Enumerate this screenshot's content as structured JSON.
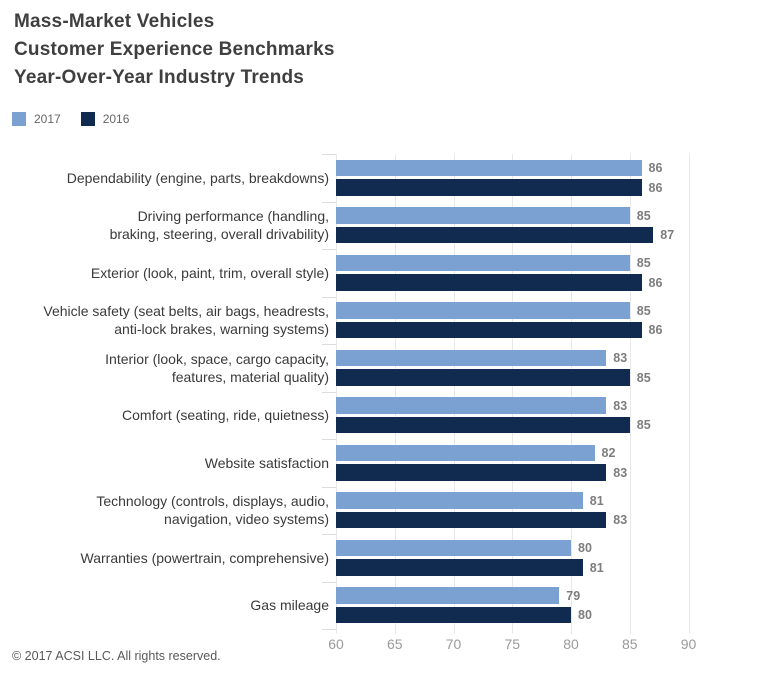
{
  "title": {
    "line1": "Mass-Market Vehicles",
    "line2": "Customer Experience Benchmarks",
    "line3": "Year-Over-Year Industry Trends"
  },
  "legend": {
    "items": [
      {
        "label": "2017",
        "color": "#7ba0d2"
      },
      {
        "label": "2016",
        "color": "#102a50"
      }
    ]
  },
  "footer": {
    "copyright": "© 2017 ACSI LLC. All rights reserved."
  },
  "colors": {
    "bar_2017": "#7ba0d2",
    "bar_2016": "#102a50",
    "gridline": "#e8e8e8",
    "boundary_tick": "#dcdcdc",
    "axis_tick_label": "#9a9a9a",
    "value_label": "#7d7d7d",
    "category_label": "#3a3a3a",
    "title_text": "#3f3f3f"
  },
  "chart_data": {
    "type": "bar",
    "orientation": "horizontal",
    "title": "Mass-Market Vehicles Customer Experience Benchmarks Year-Over-Year Industry Trends",
    "xlabel": "",
    "ylabel": "",
    "grid": true,
    "legend_position": "top-left",
    "value_labels": true,
    "xlim": [
      60,
      92
    ],
    "ticks": [
      60,
      65,
      70,
      75,
      80,
      85,
      90
    ],
    "categories": [
      [
        "Dependability (engine, parts, breakdowns)"
      ],
      [
        "Driving performance (handling,",
        "braking, steering, overall drivability)"
      ],
      [
        "Exterior (look, paint, trim, overall style)"
      ],
      [
        "Vehicle safety (seat belts, air bags, headrests,",
        "anti-lock brakes, warning systems)"
      ],
      [
        "Interior (look, space, cargo capacity,",
        "features, material quality)"
      ],
      [
        "Comfort (seating, ride, quietness)"
      ],
      [
        "Website satisfaction"
      ],
      [
        "Technology (controls, displays, audio,",
        "navigation, video systems)"
      ],
      [
        "Warranties (powertrain, comprehensive)"
      ],
      [
        "Gas mileage"
      ]
    ],
    "series": [
      {
        "name": "2017",
        "color": "#7ba0d2",
        "values": [
          86,
          85,
          85,
          85,
          83,
          83,
          82,
          81,
          80,
          79
        ]
      },
      {
        "name": "2016",
        "color": "#102a50",
        "values": [
          86,
          87,
          86,
          86,
          85,
          85,
          83,
          83,
          81,
          80
        ]
      }
    ]
  }
}
